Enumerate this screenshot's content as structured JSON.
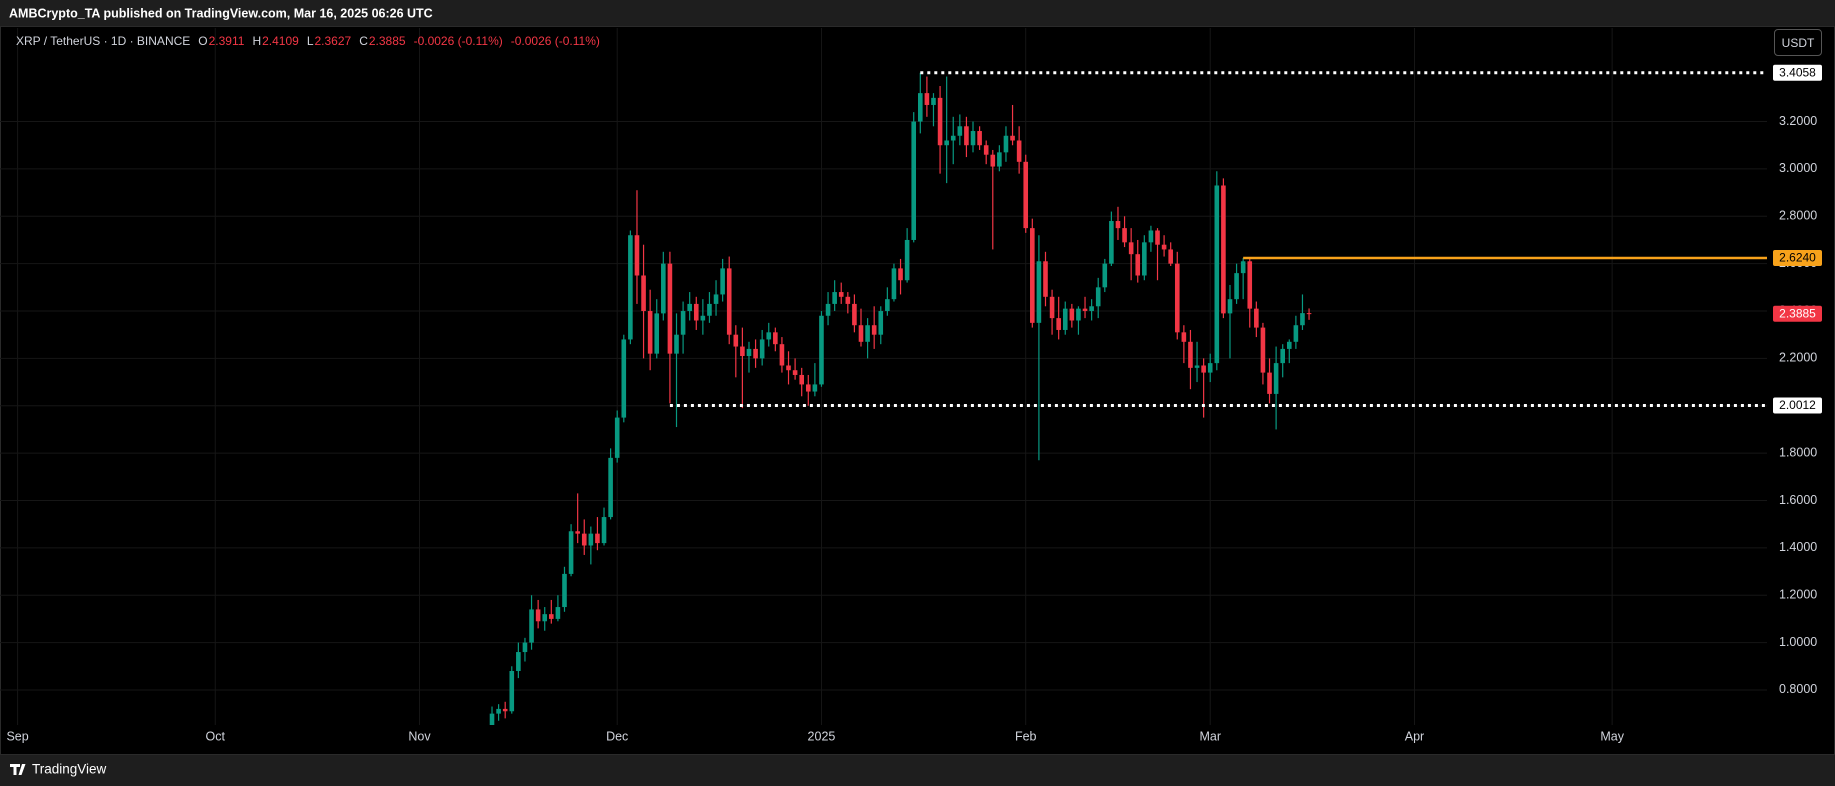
{
  "header": "AMBCrypto_TA published on TradingView.com, Mar 16, 2025 06:26 UTC",
  "footer": "TradingView",
  "currency_button": "USDT",
  "chart_data": {
    "type": "candlestick",
    "symbol": "XRP / TetherUS · 1D · BINANCE",
    "legend_labels": [
      "O",
      "H",
      "L",
      "C"
    ],
    "change": "-0.0026 (-0.11%)",
    "up_color": "#089981",
    "down_color": "#f23645",
    "grid": true,
    "xlim": [
      -2.67,
      265.5
    ],
    "xticks": [
      {
        "value": 0,
        "label": "Sep"
      },
      {
        "value": 30,
        "label": "Oct"
      },
      {
        "value": 61,
        "label": "Nov"
      },
      {
        "value": 91,
        "label": "Dec"
      },
      {
        "value": 122,
        "label": "2025"
      },
      {
        "value": 153,
        "label": "Feb"
      },
      {
        "value": 181,
        "label": "Mar"
      },
      {
        "value": 212,
        "label": "Apr"
      },
      {
        "value": 242,
        "label": "May"
      }
    ],
    "ylim": [
      0.652,
      3.595
    ],
    "yticks": [
      {
        "value": 0.8,
        "label": "0.8000"
      },
      {
        "value": 1,
        "label": "1.0000"
      },
      {
        "value": 1.2,
        "label": "1.2000"
      },
      {
        "value": 1.4,
        "label": "1.4000"
      },
      {
        "value": 1.6,
        "label": "1.6000"
      },
      {
        "value": 1.8,
        "label": "1.8000"
      },
      {
        "value": 2,
        "label": "2.0000"
      },
      {
        "value": 2.2,
        "label": "2.2000"
      },
      {
        "value": 2.4,
        "label": "2.4000"
      },
      {
        "value": 2.6,
        "label": "2.6000"
      },
      {
        "value": 2.8,
        "label": "2.8000"
      },
      {
        "value": 3,
        "label": "3.0000"
      },
      {
        "value": 3.2,
        "label": "3.2000"
      }
    ],
    "levels": [
      {
        "value": 3.4058,
        "start": 137,
        "color": "#ffffff",
        "style": "dotted"
      },
      {
        "value": 2.624,
        "label": "2.6240",
        "start": 186,
        "color": "#f7a21b",
        "style": "solid"
      },
      {
        "value": 2.0012,
        "start": 99,
        "color": "#ffffff",
        "style": "dotted"
      }
    ],
    "x": [
      72,
      73,
      74,
      75,
      76,
      77,
      78,
      79,
      80,
      81,
      82,
      83,
      84,
      85,
      86,
      87,
      88,
      89,
      90,
      91,
      92,
      93,
      94,
      95,
      96,
      97,
      98,
      99,
      100,
      101,
      102,
      103,
      104,
      105,
      106,
      107,
      108,
      109,
      110,
      111,
      112,
      113,
      114,
      115,
      116,
      117,
      118,
      119,
      120,
      121,
      122,
      123,
      124,
      125,
      126,
      127,
      128,
      129,
      130,
      131,
      132,
      133,
      134,
      135,
      136,
      137,
      138,
      139,
      140,
      141,
      142,
      143,
      144,
      145,
      146,
      147,
      148,
      149,
      150,
      151,
      152,
      153,
      154,
      155,
      156,
      157,
      158,
      159,
      160,
      161,
      162,
      163,
      164,
      165,
      166,
      167,
      168,
      169,
      170,
      171,
      172,
      173,
      174,
      175,
      176,
      177,
      178,
      179,
      180,
      181,
      182,
      183,
      184,
      185,
      186,
      187,
      188,
      189,
      190,
      191,
      192,
      193,
      194,
      195,
      196
    ],
    "open": [
      0.65,
      0.7,
      0.72,
      0.71,
      0.88,
      0.96,
      1,
      1.14,
      1.09,
      1.12,
      1.1,
      1.15,
      1.29,
      1.47,
      1.46,
      1.41,
      1.46,
      1.42,
      1.53,
      1.78,
      1.95,
      2.28,
      2.72,
      2.55,
      2.4,
      2.22,
      2.39,
      2.6,
      2.22,
      2.3,
      2.4,
      2.43,
      2.36,
      2.38,
      2.43,
      2.47,
      2.58,
      2.3,
      2.25,
      2.21,
      2.24,
      2.2,
      2.28,
      2.31,
      2.26,
      2.17,
      2.15,
      2.13,
      2.09,
      2.06,
      2.09,
      2.38,
      2.43,
      2.48,
      2.46,
      2.43,
      2.34,
      2.27,
      2.34,
      2.3,
      2.4,
      2.45,
      2.58,
      2.53,
      2.7,
      3.2,
      3.32,
      3.27,
      3.3,
      3.1,
      3.12,
      3.14,
      3.18,
      3.1,
      3.16,
      3.1,
      3.06,
      3.01,
      3.07,
      3.14,
      3.12,
      3.03,
      2.75,
      2.35,
      2.61,
      2.46,
      2.37,
      2.32,
      2.41,
      2.36,
      2.41,
      2.4,
      2.42,
      2.5,
      2.6,
      2.78,
      2.75,
      2.69,
      2.64,
      2.55,
      2.69,
      2.74,
      2.68,
      2.66,
      2.6,
      2.31,
      2.27,
      2.16,
      2.17,
      2.14,
      2.18,
      2.93,
      2.39,
      2.45,
      2.56,
      2.61,
      2.41,
      2.33,
      2.14,
      2.05,
      2.18,
      2.24,
      2.27,
      2.34,
      2.3911
    ],
    "high": [
      0.73,
      0.74,
      0.75,
      0.9,
      1,
      1.02,
      1.2,
      1.18,
      1.15,
      1.18,
      1.2,
      1.32,
      1.5,
      1.63,
      1.52,
      1.49,
      1.53,
      1.57,
      1.82,
      1.98,
      2.3,
      2.74,
      2.91,
      2.68,
      2.49,
      2.45,
      2.65,
      2.65,
      2.39,
      2.44,
      2.48,
      2.46,
      2.45,
      2.48,
      2.53,
      2.62,
      2.63,
      2.34,
      2.33,
      2.27,
      2.28,
      2.32,
      2.35,
      2.33,
      2.29,
      2.23,
      2.2,
      2.16,
      2.13,
      2.18,
      2.4,
      2.48,
      2.53,
      2.52,
      2.48,
      2.47,
      2.41,
      2.37,
      2.42,
      2.42,
      2.5,
      2.6,
      2.62,
      2.75,
      3.24,
      3.4058,
      3.39,
      3.32,
      3.35,
      3.39,
      3.22,
      3.23,
      3.22,
      3.2,
      3.18,
      3.12,
      3.08,
      3.1,
      3.18,
      3.27,
      3.18,
      3.06,
      2.79,
      2.72,
      2.65,
      2.49,
      2.46,
      2.44,
      2.43,
      2.42,
      2.46,
      2.45,
      2.54,
      2.62,
      2.82,
      2.84,
      2.8,
      2.75,
      2.7,
      2.72,
      2.76,
      2.75,
      2.72,
      2.69,
      2.65,
      2.34,
      2.32,
      2.27,
      2.2,
      2.22,
      2.99,
      2.96,
      2.51,
      2.6,
      2.624,
      2.62,
      2.44,
      2.35,
      2.2,
      2.25,
      2.26,
      2.28,
      2.38,
      2.47,
      2.4109
    ],
    "low": [
      0.62,
      0.67,
      0.68,
      0.7,
      0.85,
      0.92,
      0.97,
      1.06,
      1.05,
      1.08,
      1.09,
      1.13,
      1.28,
      1.42,
      1.37,
      1.33,
      1.39,
      1.41,
      1.52,
      1.76,
      1.93,
      2.26,
      2.43,
      2.2,
      2.15,
      2.2,
      2.36,
      2.01,
      1.91,
      2.22,
      2.36,
      2.32,
      2.3,
      2.35,
      2.38,
      2.44,
      2.26,
      2.12,
      1.99,
      2.14,
      2.16,
      2.17,
      2.25,
      2.23,
      2.14,
      2.09,
      2.11,
      2.04,
      2,
      2.04,
      2.08,
      2.34,
      2.4,
      2.43,
      2.39,
      2.31,
      2.25,
      2.2,
      2.24,
      2.26,
      2.38,
      2.44,
      2.47,
      2.52,
      2.69,
      3.15,
      3.22,
      3.18,
      2.98,
      2.94,
      3.02,
      3.1,
      3.05,
      3.07,
      3.08,
      3.02,
      2.66,
      2.99,
      3.03,
      3.1,
      2.98,
      2.73,
      2.33,
      1.77,
      2.42,
      2.3,
      2.28,
      2.3,
      2.33,
      2.3,
      2.37,
      2.36,
      2.37,
      2.48,
      2.59,
      2.7,
      2.67,
      2.53,
      2.52,
      2.53,
      2.65,
      2.53,
      2.63,
      2.59,
      2.28,
      2.18,
      2.07,
      2.1,
      1.95,
      2.1,
      2.15,
      2.37,
      2.2,
      2.43,
      2.45,
      2.33,
      2.29,
      2.09,
      2.01,
      1.9,
      2.12,
      2.18,
      2.24,
      2.32,
      2.3627
    ],
    "close": [
      0.7,
      0.72,
      0.71,
      0.88,
      0.96,
      1,
      1.14,
      1.09,
      1.12,
      1.1,
      1.15,
      1.29,
      1.47,
      1.46,
      1.41,
      1.46,
      1.42,
      1.53,
      1.78,
      1.95,
      2.28,
      2.72,
      2.55,
      2.4,
      2.22,
      2.39,
      2.6,
      2.22,
      2.3,
      2.4,
      2.43,
      2.36,
      2.38,
      2.43,
      2.47,
      2.58,
      2.3,
      2.25,
      2.21,
      2.24,
      2.2,
      2.28,
      2.31,
      2.26,
      2.17,
      2.15,
      2.13,
      2.09,
      2.06,
      2.09,
      2.38,
      2.43,
      2.48,
      2.46,
      2.43,
      2.34,
      2.27,
      2.34,
      2.3,
      2.4,
      2.45,
      2.58,
      2.53,
      2.7,
      3.2,
      3.32,
      3.27,
      3.3,
      3.1,
      3.12,
      3.14,
      3.18,
      3.1,
      3.16,
      3.1,
      3.06,
      3.01,
      3.07,
      3.14,
      3.12,
      3.03,
      2.75,
      2.35,
      2.61,
      2.46,
      2.37,
      2.32,
      2.41,
      2.36,
      2.41,
      2.4,
      2.42,
      2.5,
      2.6,
      2.78,
      2.75,
      2.69,
      2.64,
      2.55,
      2.69,
      2.74,
      2.68,
      2.66,
      2.6,
      2.31,
      2.27,
      2.16,
      2.17,
      2.14,
      2.18,
      2.93,
      2.39,
      2.45,
      2.56,
      2.61,
      2.41,
      2.33,
      2.14,
      2.05,
      2.18,
      2.24,
      2.27,
      2.34,
      2.3911,
      2.3885
    ]
  }
}
